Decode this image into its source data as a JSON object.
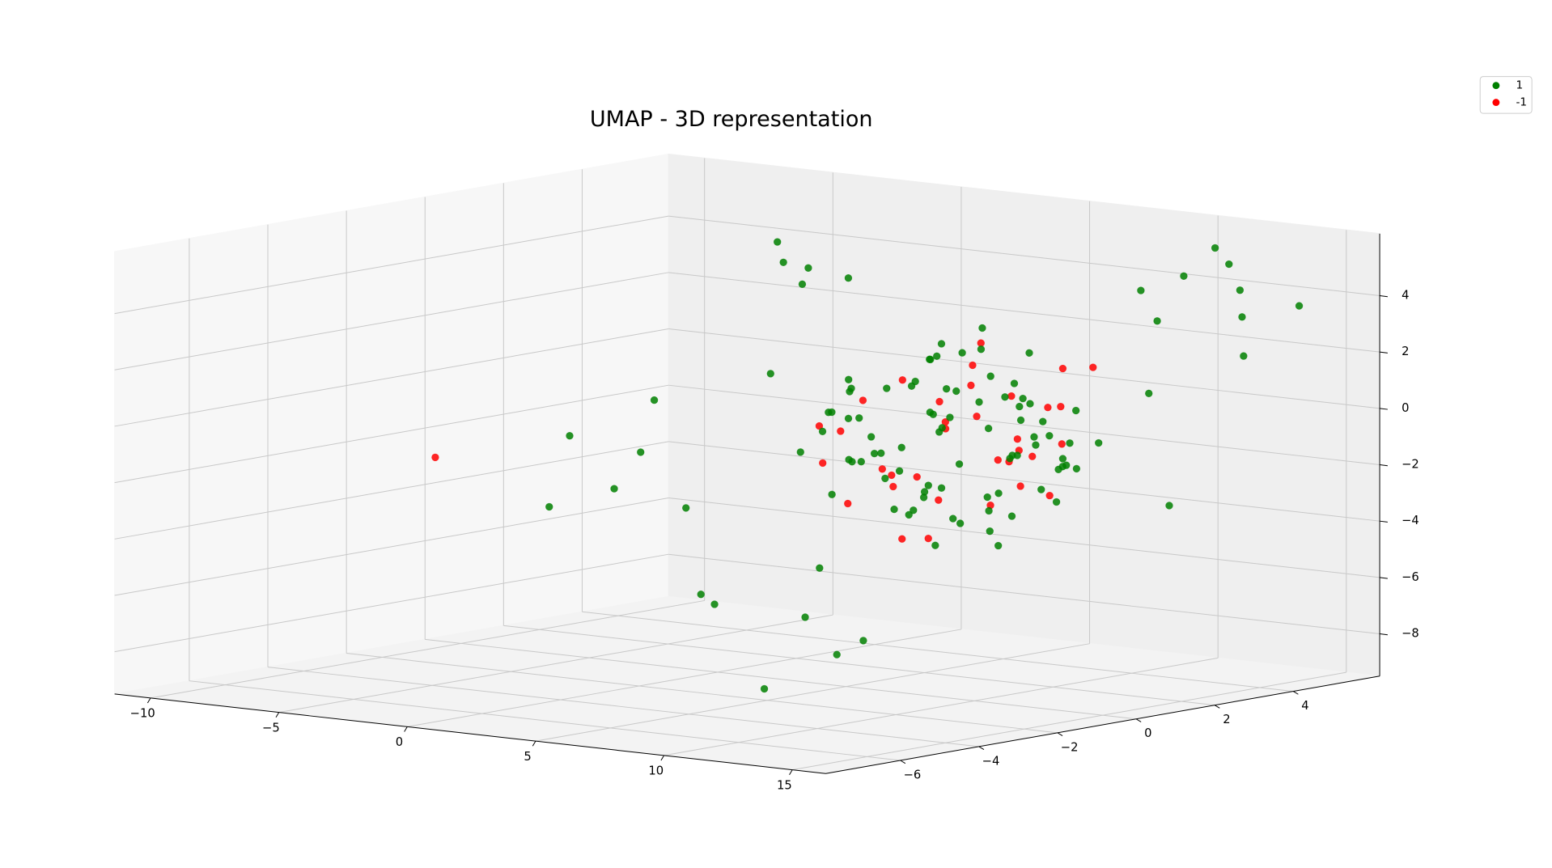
{
  "chart_data": {
    "type": "scatter3d",
    "title": "UMAP - 3D representation",
    "xlim": [
      -11.4,
      16.3
    ],
    "ylim": [
      -7.9,
      6.2
    ],
    "zlim": [
      -9.5,
      6.2
    ],
    "xticks": [
      {
        "value": -10,
        "label": "−10"
      },
      {
        "value": -5,
        "label": "−5"
      },
      0,
      5,
      10,
      15
    ],
    "yticks": [
      {
        "value": -6,
        "label": "−6"
      },
      {
        "value": -4,
        "label": "−4"
      },
      {
        "value": -2,
        "label": "−2"
      },
      0,
      2,
      4
    ],
    "zticks": [
      {
        "value": -8,
        "label": "−8"
      },
      {
        "value": -6,
        "label": "−6"
      },
      {
        "value": -4,
        "label": "−4"
      },
      {
        "value": -2,
        "label": "−2"
      },
      0,
      2,
      4
    ],
    "grid": true,
    "legend": "upper right",
    "series": [
      {
        "name": "1",
        "color": "#008000",
        "x": [
          7.1,
          8.3,
          6.2,
          9.0,
          5.8,
          7.7,
          6.9,
          8.8,
          4.9,
          10.1,
          7.4,
          6.0,
          8.5,
          9.6,
          5.3,
          7.9,
          6.6,
          8.1,
          7.0,
          9.3,
          5.6,
          8.7,
          6.4,
          7.2,
          10.4,
          4.6,
          7.8,
          6.8,
          9.1,
          5.9,
          8.0,
          7.5,
          6.3,
          9.8,
          5.1,
          8.4,
          7.3,
          6.7,
          10.0,
          5.5,
          7.6,
          8.9,
          6.1,
          7.0,
          9.4,
          4.8,
          8.2,
          6.5,
          7.9,
          6.9,
          10.6,
          5.2,
          7.4,
          8.6,
          6.0,
          9.2,
          7.1,
          5.7,
          8.1,
          6.6,
          7.8,
          9.7,
          5.4,
          8.3,
          6.9,
          7.2,
          10.2,
          4.5,
          8.8,
          6.2,
          7.5,
          9.0,
          5.0,
          7.7,
          6.4,
          8.5,
          7.0,
          9.9,
          5.8,
          8.0,
          13,
          11.5,
          14,
          12.8,
          10.5,
          13.6,
          12.2,
          15,
          11,
          14.5,
          -0.5,
          1,
          0.5,
          -1.5,
          2,
          -3,
          -4,
          -2.5,
          -5,
          -1,
          -3.5,
          -2,
          8,
          6,
          9.5,
          7,
          10,
          5.5,
          11,
          13
        ],
        "y": [
          1.0,
          0.4,
          2.1,
          1.8,
          0.2,
          2.9,
          -0.6,
          1.4,
          1.1,
          0.9,
          3.4,
          -1.1,
          2.5,
          -0.2,
          1.9,
          -0.9,
          3.0,
          0.1,
          1.6,
          2.2,
          -0.3,
          3.1,
          0.8,
          -1.8,
          1.3,
          2.4,
          0.6,
          4.0,
          -0.7,
          2.8,
          1.7,
          -1.5,
          3.6,
          0.5,
          0.0,
          2.0,
          -2.1,
          1.2,
          2.6,
          3.3,
          0.3,
          -0.4,
          1.5,
          4.3,
          1.0,
          1.8,
          -1.2,
          2.7,
          3.8,
          -1.6,
          0.7,
          2.3,
          1.9,
          3.5,
          -0.5,
          -0.1,
          0.9,
          2.5,
          -0.8,
          1.4,
          4.6,
          1.1,
          -0.2,
          3.2,
          -2.4,
          2.0,
          0.2,
          0.4,
          1.8,
          3.9,
          -1.3,
          2.9,
          1.6,
          0.0,
          0.5,
          -1.9,
          4.1,
          1.3,
          2.2,
          -0.6,
          4.8,
          5.5,
          4.2,
          3.5,
          5.8,
          4.5,
          2.8,
          5,
          4,
          1.5,
          2,
          1.5,
          3,
          2.5,
          1,
          0,
          1,
          -1,
          -0.5,
          2,
          -2,
          0.5,
          -3,
          -4,
          -2.5,
          -5,
          -3.5,
          -1,
          -6,
          3
        ],
        "z": [
          -0.5,
          1.3,
          -2.0,
          0.4,
          -1.2,
          1.9,
          -0.3,
          -2.6,
          0.8,
          -1.0,
          -3.1,
          0.6,
          -0.9,
          1.5,
          -2.8,
          -1.6,
          0.2,
          2.4,
          -3.9,
          -0.2,
          1.1,
          -1.8,
          -3.3,
          0.9,
          -0.7,
          -0.4,
          2.8,
          -1.4,
          -2.2,
          0.0,
          -4.1,
          1.7,
          -0.8,
          -2.9,
          1.4,
          -3.6,
          0.3,
          2.1,
          -1.9,
          -1.1,
          -2.4,
          2.6,
          -0.1,
          -2.5,
          -4.3,
          0.7,
          -0.6,
          1.0,
          -1.5,
          -2.1,
          -0.9,
          -3.0,
          3.0,
          -0.2,
          -1.3,
          0.5,
          -4.5,
          1.8,
          -2.7,
          -0.5,
          -1.7,
          -1.2,
          0.1,
          -3.4,
          -0.4,
          2.2,
          -2.3,
          -1.6,
          1.2,
          -0.3,
          0.6,
          -2.0,
          -3.8,
          1.6,
          -1.0,
          -0.7,
          -2.6,
          0.9,
          -4.0,
          -1.4,
          4.2,
          4.8,
          3.5,
          5,
          5.2,
          2,
          4.6,
          3.8,
          3.1,
          1.5,
          4.5,
          4,
          3.8,
          5,
          4.8,
          -2,
          -0.5,
          -3,
          -1.5,
          0.5,
          -3.5,
          -4,
          -6,
          -5.5,
          -6.8,
          -4.8,
          -7,
          -5,
          -7.5,
          -3
        ]
      },
      {
        "name": "-1",
        "color": "#ff0000",
        "x": [
          6.5,
          8.0,
          9.5,
          5.5,
          7.2,
          8.8,
          6.1,
          10.0,
          7.7,
          5.0,
          9.1,
          6.8,
          8.4,
          7.0,
          5.8,
          9.8,
          6.3,
          8.1,
          7.5,
          10.3,
          4.9,
          8.7,
          6.6,
          7.9,
          9.3,
          5.4,
          7.3,
          8.5,
          6.0,
          9.6,
          7.8,
          6.9,
          10.5,
          5.2,
          -11
        ],
        "y": [
          2.2,
          -0.8,
          1.5,
          3.0,
          0.0,
          2.7,
          -1.4,
          0.6,
          3.7,
          1.2,
          -0.3,
          2.5,
          1.0,
          -1.9,
          0.4,
          2.0,
          3.3,
          -0.6,
          1.8,
          0.9,
          2.6,
          3.1,
          -1.0,
          0.2,
          1.4,
          -0.4,
          2.9,
          4.0,
          1.7,
          -1.2,
          0.7,
          3.5,
          1.9,
          0.3,
          0
        ],
        "z": [
          0.8,
          -1.5,
          -2.3,
          -0.6,
          1.6,
          -3.0,
          0.2,
          -1.1,
          -0.2,
          -2.7,
          1.1,
          -3.5,
          2.0,
          -0.9,
          -1.8,
          0.4,
          -2.2,
          -3.8,
          2.5,
          -0.4,
          -1.0,
          1.4,
          -2.6,
          -4.0,
          0.9,
          -0.3,
          -1.6,
          1.2,
          -3.2,
          -1.3,
          0.0,
          -2.0,
          -0.8,
          0.6,
          -3
        ]
      }
    ]
  }
}
